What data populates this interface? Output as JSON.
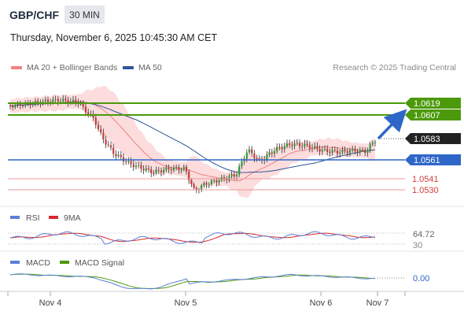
{
  "header": {
    "symbol": "GBP/CHF",
    "timeframe": "30 MIN",
    "datetime": "Thursday, November 6, 2025 10:45:30 AM CET"
  },
  "legend": {
    "ma20_label": "MA 20 + Bollinger Bands",
    "ma50_label": "MA 50",
    "research_text": "Research © 2025 Trading Central"
  },
  "colors": {
    "ma20": "#f08080",
    "ma50": "#2f5597",
    "bollinger_fill": "#fbd6d6",
    "resistance": "#4c9a0c",
    "pivot": "#2f67c9",
    "support": "#e06a6a",
    "up_candle": "#2e9a3a",
    "down_candle": "#c63a3a",
    "rsi": "#5b7fd6",
    "rsi_ma": "#d62a2a",
    "macd": "#5b7fd6",
    "macd_signal": "#4c9a0c"
  },
  "levels": {
    "r2": "1.0619",
    "r1": "1.0607",
    "last": "1.0583",
    "pivot": "1.0561",
    "s1": "1.0541",
    "s2": "1.0530"
  },
  "rsi_panel": {
    "rsi_label": "RSI",
    "ma_label": "9MA",
    "value": "64.72",
    "level_30": "30"
  },
  "macd_panel": {
    "macd_label": "MACD",
    "signal_label": "MACD Signal",
    "value": "0.00"
  },
  "x_axis": {
    "labels": [
      "Nov 4",
      "Nov 5",
      "Nov 6",
      "Nov 7"
    ]
  }
}
